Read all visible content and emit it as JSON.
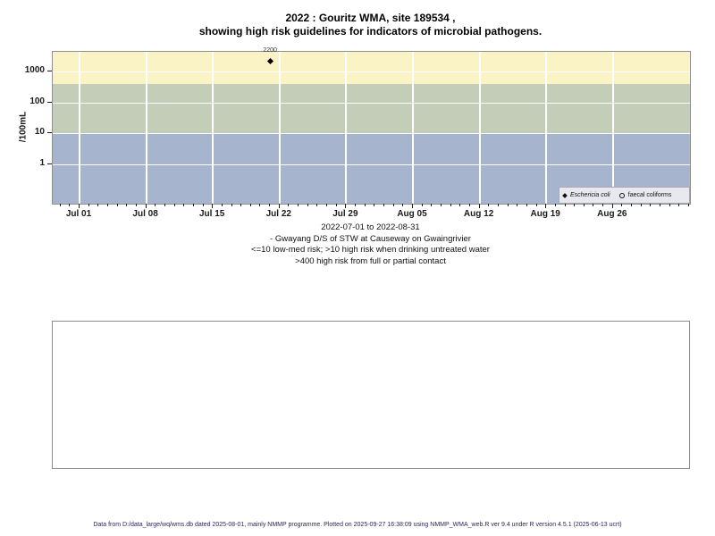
{
  "title": {
    "line1": "2022 : Gouritz WMA, site 189534 ,",
    "line2": "showing high risk guidelines for indicators of microbial pathogens."
  },
  "chart_data": {
    "type": "scatter",
    "title": "2022 : Gouritz WMA, site 189534 , showing high risk guidelines for indicators of microbial pathogens.",
    "ylabel": "/100mL",
    "y_scale": "log10",
    "y_ticks": [
      1000,
      100,
      10,
      1
    ],
    "x_start": "2022-07-01",
    "x_end": "2022-08-31",
    "x_tick_labels": [
      "Jul 01",
      "Jul 08",
      "Jul 15",
      "Jul 22",
      "Jul 29",
      "Aug 05",
      "Aug 12",
      "Aug 19",
      "Aug 26"
    ],
    "grid": true,
    "legend_position": "bottom-right",
    "risk_bands": [
      {
        "name": "above-400",
        "min": 400,
        "max": null,
        "color": "#FAF3C6"
      },
      {
        "name": "10-to-400",
        "min": 10,
        "max": 400,
        "color": "#C4CDB8"
      },
      {
        "name": "below-10",
        "min": null,
        "max": 10,
        "color": "#A6B4CD"
      }
    ],
    "series": [
      {
        "name": "Eschericia coli",
        "marker": "filled-diamond",
        "color": "#000000",
        "points": [
          {
            "date": "2022-07-21",
            "value": 2200,
            "label": "2200"
          }
        ]
      },
      {
        "name": "faecal coliforms",
        "marker": "open-circle",
        "color": "#000000",
        "points": []
      }
    ]
  },
  "caption": {
    "lines": [
      "2022-07-01 to 2022-08-31",
      "- Gwayang D/S of STW at Causeway on Gwaingrivier",
      "<=10 low-med risk; >10 high risk when drinking untreated water",
      ">400 high risk from full or partial contact"
    ]
  },
  "footer": {
    "text": "Data from D:/data_large/wq/wms.db dated 2025-08-01, mainly NMMP programme. Plotted on 2025-09-27 16:38:09 using NMMP_WMA_web.R ver 9.4 under R version 4.5.1 (2025-06-13 ucrt)"
  },
  "colors": {
    "band_above_400": "#FAF3C6",
    "band_10_400": "#C4CDB8",
    "band_below_10": "#A6B4CD",
    "legend_bg": "#E8E8EF",
    "plot_border": "#909090",
    "gridline": "#FFFFFF",
    "footer_text": "#28285A"
  }
}
